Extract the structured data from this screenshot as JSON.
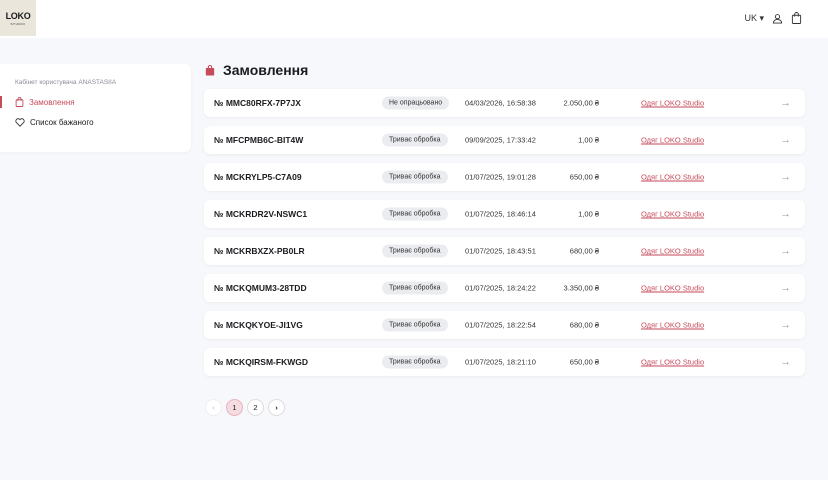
{
  "header": {
    "logo": "LOKO",
    "logo_sub": "STUDIO",
    "language": "UK"
  },
  "sidebar": {
    "caption": "Кабінет користувача ANASTASIIA",
    "items": [
      {
        "label": "Замовлення",
        "active": true
      },
      {
        "label": "Список бажаного",
        "active": false
      }
    ]
  },
  "page": {
    "title": "Замовлення"
  },
  "accent": "#c54a5a",
  "orders": [
    {
      "number": "№ MMC80RFX-7P7JX",
      "status": "Не опрацьовано",
      "date": "04/03/2026, 16:58:38",
      "total": "2.050,00 ₴",
      "shop": "Одяг LOKO Studio"
    },
    {
      "number": "№ MFCPMB6C-BIT4W",
      "status": "Триває обробка",
      "date": "09/09/2025, 17:33:42",
      "total": "1,00 ₴",
      "shop": "Одяг LOKO Studio"
    },
    {
      "number": "№ MCKRYLP5-C7A09",
      "status": "Триває обробка",
      "date": "01/07/2025, 19:01:28",
      "total": "650,00 ₴",
      "shop": "Одяг LOKO Studio"
    },
    {
      "number": "№ MCKRDR2V-NSWC1",
      "status": "Триває обробка",
      "date": "01/07/2025, 18:46:14",
      "total": "1,00 ₴",
      "shop": "Одяг LOKO Studio"
    },
    {
      "number": "№ MCKRBXZX-PB0LR",
      "status": "Триває обробка",
      "date": "01/07/2025, 18:43:51",
      "total": "680,00 ₴",
      "shop": "Одяг LOKO Studio"
    },
    {
      "number": "№ MCKQMUM3-28TDD",
      "status": "Триває обробка",
      "date": "01/07/2025, 18:24:22",
      "total": "3.350,00 ₴",
      "shop": "Одяг LOKO Studio"
    },
    {
      "number": "№ MCKQKYOE-JI1VG",
      "status": "Триває обробка",
      "date": "01/07/2025, 18:22:54",
      "total": "680,00 ₴",
      "shop": "Одяг LOKO Studio"
    },
    {
      "number": "№ MCKQIRSM-FKWGD",
      "status": "Триває обробка",
      "date": "01/07/2025, 18:21:10",
      "total": "650,00 ₴",
      "shop": "Одяг LOKO Studio"
    }
  ],
  "pagination": {
    "prev": "‹",
    "pages": [
      "1",
      "2"
    ],
    "current": "1",
    "next": "›"
  }
}
